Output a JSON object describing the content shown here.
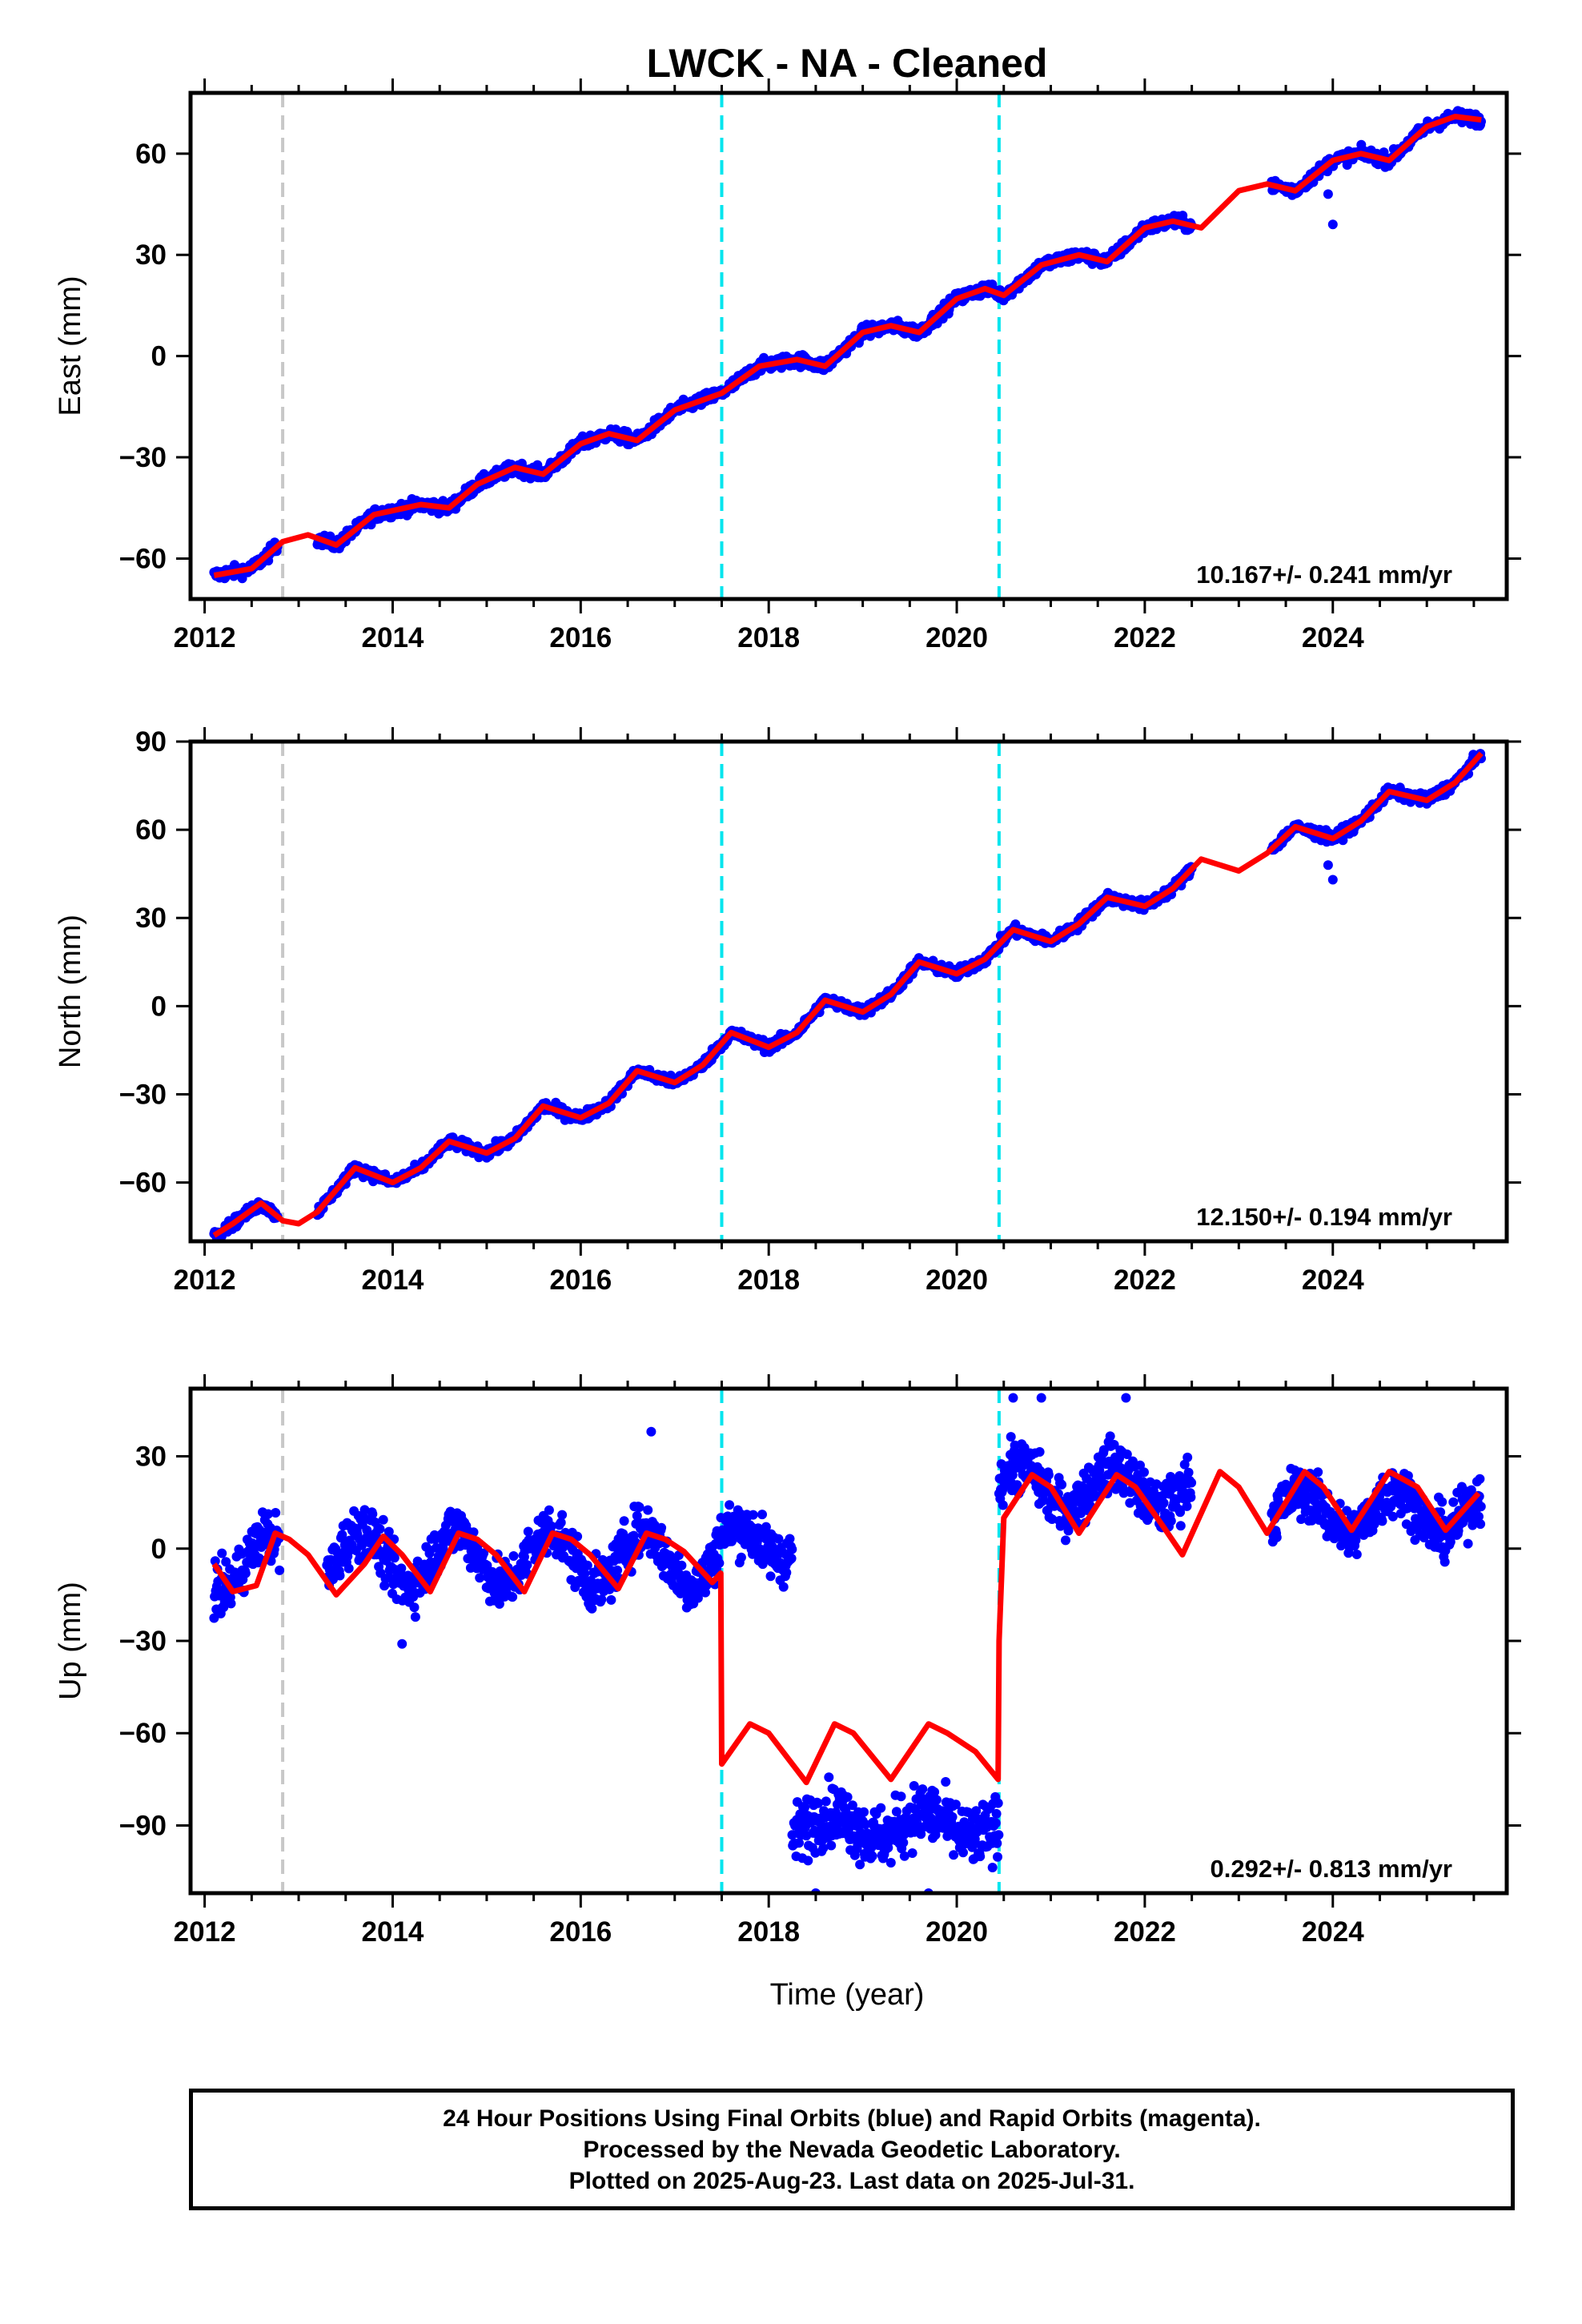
{
  "chart_data": {
    "type": "scatter",
    "title": "LWCK  - NA - Cleaned",
    "xlabel": "Time (year)",
    "xlim": [
      2011.85,
      2025.85
    ],
    "xticks": [
      2012,
      2014,
      2016,
      2018,
      2020,
      2022,
      2024
    ],
    "colors": {
      "observations": "#0000ff",
      "model": "#ff0000",
      "equipment_change": "#c8c8c8",
      "offset": "#00e5ee"
    },
    "event_lines": [
      {
        "x": 2012.83,
        "kind": "equipment_change"
      },
      {
        "x": 2017.5,
        "kind": "offset"
      },
      {
        "x": 2020.45,
        "kind": "offset"
      }
    ],
    "panels": [
      {
        "component": "East",
        "ylabel": "East (mm)",
        "ylim": [
          -72,
          78
        ],
        "yticks": [
          -60,
          -30,
          0,
          30,
          60
        ],
        "rate": "10.167+/- 0.241 mm/yr",
        "data_segments": [
          [
            2012.1,
            2012.78
          ],
          [
            2013.2,
            2022.5
          ],
          [
            2023.35,
            2025.58
          ]
        ],
        "model": [
          [
            2012.1,
            -65
          ],
          [
            2012.5,
            -63
          ],
          [
            2012.83,
            -55
          ],
          [
            2013.1,
            -53
          ],
          [
            2013.4,
            -56
          ],
          [
            2013.8,
            -47
          ],
          [
            2014.3,
            -44
          ],
          [
            2014.6,
            -45
          ],
          [
            2014.9,
            -38
          ],
          [
            2015.3,
            -33
          ],
          [
            2015.6,
            -35
          ],
          [
            2016.0,
            -26
          ],
          [
            2016.3,
            -23
          ],
          [
            2016.6,
            -25
          ],
          [
            2017.0,
            -16
          ],
          [
            2017.3,
            -13
          ],
          [
            2017.5,
            -11
          ],
          [
            2017.9,
            -3
          ],
          [
            2018.3,
            -1
          ],
          [
            2018.6,
            -3
          ],
          [
            2019.0,
            7
          ],
          [
            2019.3,
            9
          ],
          [
            2019.6,
            7
          ],
          [
            2020.0,
            17
          ],
          [
            2020.3,
            20
          ],
          [
            2020.5,
            18
          ],
          [
            2020.9,
            27
          ],
          [
            2021.3,
            30
          ],
          [
            2021.6,
            28
          ],
          [
            2022.0,
            38
          ],
          [
            2022.3,
            40
          ],
          [
            2022.6,
            38
          ],
          [
            2023.0,
            49
          ],
          [
            2023.3,
            51
          ],
          [
            2023.6,
            49
          ],
          [
            2024.0,
            58
          ],
          [
            2024.3,
            60
          ],
          [
            2024.6,
            58
          ],
          [
            2025.0,
            68
          ],
          [
            2025.3,
            71
          ],
          [
            2025.58,
            70
          ]
        ],
        "outliers": [
          [
            2023.95,
            48
          ],
          [
            2024.0,
            39
          ]
        ]
      },
      {
        "component": "North",
        "ylabel": "North (mm)",
        "ylim": [
          -80,
          90
        ],
        "yticks": [
          -60,
          -30,
          0,
          30,
          60,
          90
        ],
        "rate": "12.150+/- 0.194 mm/yr",
        "data_segments": [
          [
            2012.1,
            2012.78
          ],
          [
            2013.2,
            2022.5
          ],
          [
            2023.35,
            2025.58
          ]
        ],
        "model": [
          [
            2012.1,
            -78
          ],
          [
            2012.3,
            -74
          ],
          [
            2012.6,
            -67
          ],
          [
            2012.83,
            -73
          ],
          [
            2013.0,
            -74
          ],
          [
            2013.2,
            -70
          ],
          [
            2013.6,
            -55
          ],
          [
            2014.0,
            -60
          ],
          [
            2014.3,
            -55
          ],
          [
            2014.6,
            -46
          ],
          [
            2015.0,
            -50
          ],
          [
            2015.3,
            -45
          ],
          [
            2015.6,
            -34
          ],
          [
            2016.0,
            -38
          ],
          [
            2016.3,
            -33
          ],
          [
            2016.6,
            -22
          ],
          [
            2017.0,
            -26
          ],
          [
            2017.3,
            -20
          ],
          [
            2017.6,
            -9
          ],
          [
            2018.0,
            -14
          ],
          [
            2018.3,
            -9
          ],
          [
            2018.6,
            2
          ],
          [
            2019.0,
            -2
          ],
          [
            2019.3,
            4
          ],
          [
            2019.6,
            15
          ],
          [
            2020.0,
            11
          ],
          [
            2020.3,
            16
          ],
          [
            2020.6,
            26
          ],
          [
            2021.0,
            22
          ],
          [
            2021.3,
            28
          ],
          [
            2021.6,
            37
          ],
          [
            2022.0,
            34
          ],
          [
            2022.3,
            40
          ],
          [
            2022.6,
            50
          ],
          [
            2023.0,
            46
          ],
          [
            2023.3,
            52
          ],
          [
            2023.6,
            61
          ],
          [
            2024.0,
            57
          ],
          [
            2024.3,
            63
          ],
          [
            2024.6,
            73
          ],
          [
            2025.0,
            70
          ],
          [
            2025.3,
            76
          ],
          [
            2025.58,
            86
          ]
        ],
        "outliers": [
          [
            2023.95,
            48
          ],
          [
            2024.0,
            43
          ]
        ]
      },
      {
        "component": "Up",
        "ylabel": "Up (mm)",
        "ylim": [
          -112,
          52
        ],
        "yticks": [
          -90,
          -60,
          -30,
          0,
          30
        ],
        "rate": "0.292+/- 0.813 mm/yr",
        "observation_segments": [
          {
            "x": [
              2012.1,
              2012.8
            ],
            "level": -5,
            "amplitude": 9,
            "noise": 6
          },
          {
            "x": [
              2013.3,
              2017.45
            ],
            "level": -3,
            "amplitude": 9,
            "noise": 6
          },
          {
            "x": [
              2017.45,
              2018.25
            ],
            "level": 2,
            "amplitude": 5,
            "noise": 6
          },
          {
            "x": [
              2018.25,
              2020.45
            ],
            "level": -90,
            "amplitude": 4,
            "noise": 7
          },
          {
            "x": [
              2020.45,
              2022.5
            ],
            "level": 20,
            "amplitude": 7,
            "noise": 6
          },
          {
            "x": [
              2023.35,
              2025.58
            ],
            "level": 12,
            "amplitude": 7,
            "noise": 6
          }
        ],
        "model": [
          [
            2012.1,
            -5
          ],
          [
            2012.3,
            -14
          ],
          [
            2012.55,
            -12
          ],
          [
            2012.75,
            5
          ],
          [
            2012.9,
            3
          ],
          [
            2013.1,
            -2
          ],
          [
            2013.4,
            -15
          ],
          [
            2013.7,
            -5
          ],
          [
            2013.9,
            4
          ],
          [
            2014.1,
            -2
          ],
          [
            2014.4,
            -14
          ],
          [
            2014.7,
            5
          ],
          [
            2014.9,
            3
          ],
          [
            2015.1,
            -2
          ],
          [
            2015.4,
            -14
          ],
          [
            2015.7,
            5
          ],
          [
            2015.9,
            3
          ],
          [
            2016.1,
            -2
          ],
          [
            2016.4,
            -13
          ],
          [
            2016.7,
            5
          ],
          [
            2016.9,
            3
          ],
          [
            2017.1,
            -1
          ],
          [
            2017.4,
            -11
          ],
          [
            2017.49,
            -8
          ],
          [
            2017.5,
            -70
          ],
          [
            2017.8,
            -57
          ],
          [
            2018.0,
            -60
          ],
          [
            2018.4,
            -76
          ],
          [
            2018.7,
            -57
          ],
          [
            2018.9,
            -60
          ],
          [
            2019.3,
            -75
          ],
          [
            2019.7,
            -57
          ],
          [
            2019.9,
            -60
          ],
          [
            2020.2,
            -66
          ],
          [
            2020.44,
            -75
          ],
          [
            2020.45,
            -30
          ],
          [
            2020.5,
            10
          ],
          [
            2020.8,
            24
          ],
          [
            2021.0,
            20
          ],
          [
            2021.3,
            5
          ],
          [
            2021.7,
            24
          ],
          [
            2021.9,
            20
          ],
          [
            2022.2,
            7
          ],
          [
            2022.4,
            -2
          ],
          [
            2022.8,
            25
          ],
          [
            2023.0,
            20
          ],
          [
            2023.3,
            5
          ],
          [
            2023.7,
            25
          ],
          [
            2023.9,
            20
          ],
          [
            2024.2,
            6
          ],
          [
            2024.6,
            25
          ],
          [
            2024.9,
            20
          ],
          [
            2025.2,
            6
          ],
          [
            2025.55,
            18
          ]
        ],
        "outliers": [
          [
            2016.75,
            38
          ],
          [
            2014.1,
            -31
          ],
          [
            2020.6,
            49
          ],
          [
            2020.9,
            49
          ],
          [
            2021.8,
            49
          ],
          [
            2018.5,
            -112
          ],
          [
            2019.7,
            -112
          ]
        ]
      }
    ]
  },
  "footer": {
    "line1": "24 Hour Positions Using Final Orbits (blue) and Rapid Orbits (magenta).",
    "line2": "Processed by the Nevada Geodetic Laboratory.",
    "line3": "Plotted on 2025-Aug-23. Last data on 2025-Jul-31."
  }
}
